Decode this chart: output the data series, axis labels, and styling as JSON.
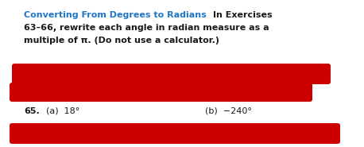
{
  "title_blue": "Converting From Degrees to Radians",
  "line1_black": "In Exercises",
  "line2": "63–66, rewrite each angle in radian measure as a",
  "line3": "multiple of π. (Do not use a calculator.)",
  "problem_num": "65.",
  "part_a": "(a)  18°",
  "part_b": "(b)  −240°",
  "bg_color": "#ffffff",
  "blue_color": "#2176c4",
  "black_color": "#1a1a1a",
  "red_color": "#cc0000",
  "fig_width": 4.58,
  "fig_height": 1.85,
  "dpi": 100
}
